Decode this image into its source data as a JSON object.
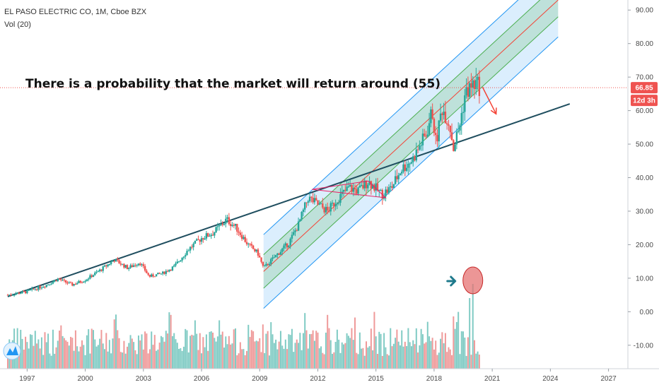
{
  "header": {
    "symbol_line": "EL PASO ELECTRIC CO, 1M, Cboe BZX",
    "indicator_line": "Vol (20)"
  },
  "annotation": {
    "text": "There is a probability that the market will return around (55)"
  },
  "price_badge": {
    "value": "66.85",
    "countdown": "12d 3h"
  },
  "colors": {
    "up": "#26a69a",
    "down": "#ef5350",
    "trendline": "#1f4e5f",
    "channel_outer": "#2196f3",
    "channel_inner": "#4caf50",
    "channel_mid": "#f44336",
    "price_line": "#ef5350",
    "arrow": "#f44336",
    "volume_up": "#80cbc4",
    "volume_down": "#ef9a9a",
    "marker_arrow": "#1f7a8c",
    "marker_circle": "#e57373"
  },
  "chart_data": {
    "type": "candlestick",
    "x_ticks": [
      "1997",
      "2000",
      "2003",
      "2006",
      "2009",
      "2012",
      "2015",
      "2018",
      "2021",
      "2024",
      "2027"
    ],
    "y_ticks": [
      "90.00",
      "80.00",
      "70.00",
      "60.00",
      "50.00",
      "40.00",
      "30.00",
      "20.00",
      "10.00",
      "0.00",
      "-10.00"
    ],
    "ylim": [
      -17,
      93
    ],
    "xlim": [
      1995.6,
      2028.0
    ],
    "last_price": 66.85,
    "price_path": [
      [
        1996.0,
        5.0
      ],
      [
        1997.0,
        6.0
      ],
      [
        1998.0,
        8.0
      ],
      [
        1998.6,
        9.8
      ],
      [
        1999.3,
        8.0
      ],
      [
        2000.0,
        9.5
      ],
      [
        2000.8,
        12.5
      ],
      [
        2001.5,
        15.5
      ],
      [
        2002.2,
        13.0
      ],
      [
        2002.8,
        14.8
      ],
      [
        2003.3,
        10.5
      ],
      [
        2004.0,
        11.5
      ],
      [
        2004.6,
        13.5
      ],
      [
        2005.3,
        18.5
      ],
      [
        2006.0,
        22.0
      ],
      [
        2006.6,
        23.5
      ],
      [
        2007.3,
        27.5
      ],
      [
        2007.8,
        25.0
      ],
      [
        2008.4,
        20.0
      ],
      [
        2008.9,
        17.5
      ],
      [
        2009.2,
        13.0
      ],
      [
        2009.8,
        16.5
      ],
      [
        2010.5,
        20.5
      ],
      [
        2011.0,
        26.0
      ],
      [
        2011.5,
        34.0
      ],
      [
        2012.0,
        32.0
      ],
      [
        2012.5,
        30.0
      ],
      [
        2013.0,
        33.5
      ],
      [
        2013.6,
        37.0
      ],
      [
        2014.1,
        36.0
      ],
      [
        2014.6,
        39.0
      ],
      [
        2015.3,
        35.0
      ],
      [
        2015.8,
        37.0
      ],
      [
        2016.3,
        42.5
      ],
      [
        2016.9,
        45.5
      ],
      [
        2017.3,
        50.0
      ],
      [
        2017.6,
        53.0
      ],
      [
        2017.9,
        60.0
      ],
      [
        2018.1,
        50.0
      ],
      [
        2018.4,
        61.0
      ],
      [
        2018.8,
        56.0
      ],
      [
        2019.0,
        49.0
      ],
      [
        2019.3,
        55.0
      ],
      [
        2019.6,
        65.0
      ],
      [
        2019.9,
        67.0
      ],
      [
        2020.1,
        68.0
      ],
      [
        2020.4,
        66.85
      ]
    ],
    "trendline": [
      [
        1996.0,
        4.5
      ],
      [
        2025.0,
        62.0
      ]
    ],
    "channel": {
      "start": [
        2009.2,
        12.0
      ],
      "end": [
        2024.4,
        93.0
      ],
      "offsets": [
        -5.0,
        5.0
      ],
      "outer_offsets": [
        -11.0,
        11.0
      ]
    },
    "projection_arrow": [
      [
        2020.5,
        67.0
      ],
      [
        2021.2,
        59.0
      ]
    ],
    "volume": {
      "ylim": [
        0,
        100
      ],
      "spike_year": 2020.0,
      "spike_value": 100
    }
  }
}
